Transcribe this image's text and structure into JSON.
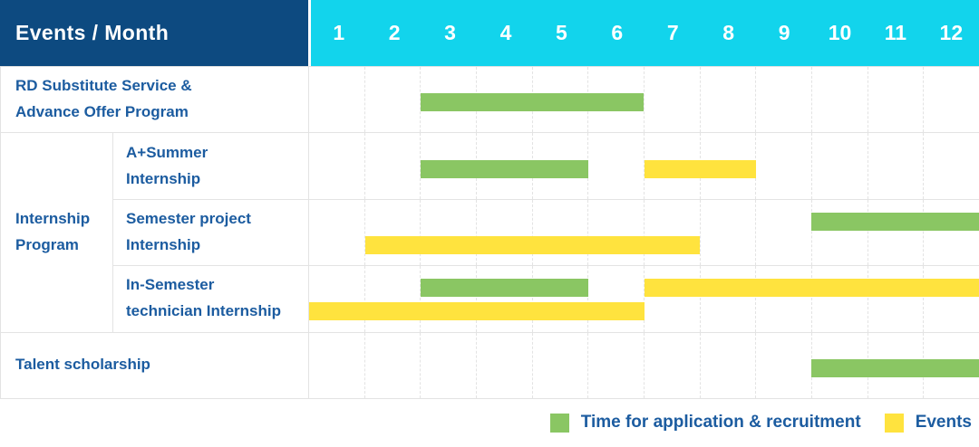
{
  "header": {
    "title": "Events / Month",
    "months": [
      "1",
      "2",
      "3",
      "4",
      "5",
      "6",
      "7",
      "8",
      "9",
      "10",
      "11",
      "12"
    ]
  },
  "colors": {
    "header_navy": "#0D4A80",
    "header_cyan": "#12D4EC",
    "label_blue": "#1C5CA0",
    "bar_green": "#8AC663",
    "bar_yellow": "#FFE33E",
    "grid_line": "#E3E3E3"
  },
  "chart_data": {
    "type": "bar",
    "subtype": "gantt-schedule",
    "title": "Events / Month",
    "x_axis": {
      "label": "Month",
      "ticks": [
        1,
        2,
        3,
        4,
        5,
        6,
        7,
        8,
        9,
        10,
        11,
        12
      ],
      "range": [
        1,
        12
      ]
    },
    "grid": true,
    "legend_position": "bottom-right",
    "series_legend": [
      {
        "key": "green",
        "label": "Time for application & recruitment",
        "color": "#8AC663"
      },
      {
        "key": "yellow",
        "label": "Events",
        "color": "#FFE33E"
      }
    ],
    "rows": [
      {
        "label": "RD Substitute Service &\nAdvance Offer Program",
        "group": "",
        "bars": [
          {
            "series": "green",
            "start_month": 3,
            "end_month": 6,
            "lane": "single"
          }
        ]
      },
      {
        "label": "A+Summer\nInternship",
        "group": "Internship\nProgram",
        "bars": [
          {
            "series": "green",
            "start_month": 3,
            "end_month": 5,
            "lane": "single"
          },
          {
            "series": "yellow",
            "start_month": 7,
            "end_month": 8,
            "lane": "single"
          }
        ]
      },
      {
        "label": "Semester project\nInternship",
        "group": "Internship\nProgram",
        "bars": [
          {
            "series": "green",
            "start_month": 10,
            "end_month": 12,
            "lane": "top"
          },
          {
            "series": "yellow",
            "start_month": 2,
            "end_month": 7,
            "lane": "bottom"
          }
        ]
      },
      {
        "label": "In-Semester\ntechnician Internship",
        "group": "Internship\nProgram",
        "bars": [
          {
            "series": "green",
            "start_month": 3,
            "end_month": 5,
            "lane": "top"
          },
          {
            "series": "yellow",
            "start_month": 7,
            "end_month": 12,
            "lane": "top"
          },
          {
            "series": "yellow",
            "start_month": 1,
            "end_month": 6,
            "lane": "bottom"
          }
        ]
      },
      {
        "label": "Talent scholarship",
        "group": "",
        "bars": [
          {
            "series": "green",
            "start_month": 10,
            "end_month": 12,
            "lane": "single"
          }
        ]
      }
    ]
  },
  "legend": {
    "items": [
      {
        "series": "green",
        "label": "Time for application & recruitment"
      },
      {
        "series": "yellow",
        "label": "Events"
      }
    ]
  }
}
